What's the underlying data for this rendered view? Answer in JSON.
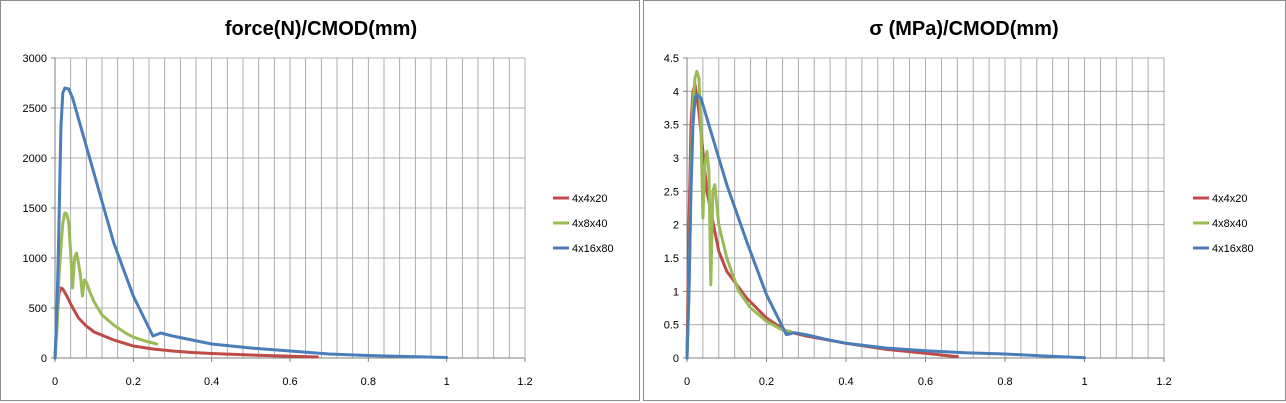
{
  "colors": {
    "grid": "#9a9a9a",
    "axis": "#7f7f7f"
  },
  "chart_data": [
    {
      "type": "line",
      "title": "force(N)/CMOD(mm)",
      "xlabel": "",
      "ylabel": "",
      "xlim": [
        0,
        1.2
      ],
      "ylim": [
        0,
        3000
      ],
      "x_ticks": [
        0,
        0.2,
        0.4,
        0.6,
        0.8,
        1,
        1.2
      ],
      "x_tick_labels": [
        "0",
        "0.2",
        "0.4",
        "0.6",
        "0.8",
        "1",
        "1.2"
      ],
      "y_ticks": [
        0,
        500,
        1000,
        1500,
        2000,
        2500,
        3000
      ],
      "y_tick_labels": [
        "0",
        "500",
        "1000",
        "1500",
        "2000",
        "2500",
        "3000"
      ],
      "grid": true,
      "legend_position": "right",
      "series": [
        {
          "name": "4x4x20",
          "color": "#be4b48",
          "points": [
            [
              0,
              0
            ],
            [
              0.005,
              400
            ],
            [
              0.01,
              640
            ],
            [
              0.015,
              700
            ],
            [
              0.02,
              690
            ],
            [
              0.03,
              620
            ],
            [
              0.04,
              540
            ],
            [
              0.05,
              470
            ],
            [
              0.06,
              400
            ],
            [
              0.08,
              320
            ],
            [
              0.1,
              260
            ],
            [
              0.15,
              180
            ],
            [
              0.2,
              120
            ],
            [
              0.25,
              90
            ],
            [
              0.3,
              70
            ],
            [
              0.35,
              55
            ],
            [
              0.4,
              45
            ],
            [
              0.5,
              30
            ],
            [
              0.6,
              18
            ],
            [
              0.67,
              10
            ]
          ]
        },
        {
          "name": "4x8x40",
          "color": "#9bbb59",
          "points": [
            [
              0,
              0
            ],
            [
              0.005,
              300
            ],
            [
              0.01,
              800
            ],
            [
              0.015,
              1100
            ],
            [
              0.02,
              1350
            ],
            [
              0.025,
              1450
            ],
            [
              0.03,
              1440
            ],
            [
              0.035,
              1350
            ],
            [
              0.04,
              1050
            ],
            [
              0.045,
              700
            ],
            [
              0.05,
              1000
            ],
            [
              0.055,
              1050
            ],
            [
              0.06,
              950
            ],
            [
              0.065,
              820
            ],
            [
              0.07,
              620
            ],
            [
              0.075,
              780
            ],
            [
              0.08,
              760
            ],
            [
              0.09,
              650
            ],
            [
              0.1,
              560
            ],
            [
              0.12,
              430
            ],
            [
              0.15,
              330
            ],
            [
              0.18,
              250
            ],
            [
              0.2,
              210
            ],
            [
              0.23,
              170
            ],
            [
              0.26,
              140
            ]
          ]
        },
        {
          "name": "4x16x80",
          "color": "#4a7ebb",
          "points": [
            [
              0,
              0
            ],
            [
              0.005,
              500
            ],
            [
              0.01,
              1300
            ],
            [
              0.015,
              2300
            ],
            [
              0.02,
              2650
            ],
            [
              0.025,
              2700
            ],
            [
              0.035,
              2690
            ],
            [
              0.045,
              2600
            ],
            [
              0.1,
              1840
            ],
            [
              0.15,
              1150
            ],
            [
              0.2,
              620
            ],
            [
              0.25,
              220
            ],
            [
              0.27,
              250
            ],
            [
              0.3,
              220
            ],
            [
              0.35,
              180
            ],
            [
              0.4,
              140
            ],
            [
              0.5,
              100
            ],
            [
              0.6,
              70
            ],
            [
              0.7,
              40
            ],
            [
              0.8,
              25
            ],
            [
              0.9,
              15
            ],
            [
              1.0,
              5
            ]
          ]
        }
      ]
    },
    {
      "type": "line",
      "title": "σ (MPa)/CMOD(mm)",
      "xlabel": "",
      "ylabel": "",
      "xlim": [
        0,
        1.2
      ],
      "ylim": [
        0,
        4.5
      ],
      "x_ticks": [
        0,
        0.2,
        0.4,
        0.6,
        0.8,
        1,
        1.2
      ],
      "x_tick_labels": [
        "0",
        "0.2",
        "0.4",
        "0.6",
        "0.8",
        "1",
        "1.2"
      ],
      "y_ticks": [
        0,
        0.5,
        1,
        1.5,
        2,
        2.5,
        3,
        3.5,
        4,
        4.5
      ],
      "y_tick_labels": [
        "0",
        "0.5",
        "1",
        "1.5",
        "2",
        "2.5",
        "3",
        "3.5",
        "4",
        "4.5"
      ],
      "grid": true,
      "legend_position": "right",
      "series": [
        {
          "name": "4x4x20",
          "color": "#be4b48",
          "points": [
            [
              0,
              0
            ],
            [
              0.005,
              2.0
            ],
            [
              0.01,
              3.5
            ],
            [
              0.015,
              4.0
            ],
            [
              0.02,
              4.1
            ],
            [
              0.03,
              3.7
            ],
            [
              0.04,
              3.1
            ],
            [
              0.05,
              2.5
            ],
            [
              0.06,
              2.2
            ],
            [
              0.08,
              1.6
            ],
            [
              0.1,
              1.3
            ],
            [
              0.15,
              0.9
            ],
            [
              0.2,
              0.6
            ],
            [
              0.25,
              0.4
            ],
            [
              0.3,
              0.33
            ],
            [
              0.4,
              0.22
            ],
            [
              0.5,
              0.13
            ],
            [
              0.6,
              0.07
            ],
            [
              0.68,
              0.02
            ]
          ]
        },
        {
          "name": "4x8x40",
          "color": "#9bbb59",
          "points": [
            [
              0,
              0
            ],
            [
              0.005,
              1.0
            ],
            [
              0.01,
              2.8
            ],
            [
              0.015,
              3.8
            ],
            [
              0.02,
              4.2
            ],
            [
              0.025,
              4.3
            ],
            [
              0.03,
              4.2
            ],
            [
              0.035,
              3.5
            ],
            [
              0.04,
              2.1
            ],
            [
              0.045,
              2.9
            ],
            [
              0.05,
              3.1
            ],
            [
              0.055,
              2.8
            ],
            [
              0.06,
              1.1
            ],
            [
              0.065,
              2.5
            ],
            [
              0.07,
              2.6
            ],
            [
              0.08,
              2.0
            ],
            [
              0.1,
              1.5
            ],
            [
              0.13,
              1.0
            ],
            [
              0.16,
              0.75
            ],
            [
              0.2,
              0.55
            ],
            [
              0.24,
              0.42
            ],
            [
              0.26,
              0.4
            ]
          ]
        },
        {
          "name": "4x16x80",
          "color": "#4a7ebb",
          "points": [
            [
              0,
              0
            ],
            [
              0.005,
              1.0
            ],
            [
              0.01,
              2.5
            ],
            [
              0.015,
              3.5
            ],
            [
              0.02,
              3.9
            ],
            [
              0.025,
              3.95
            ],
            [
              0.035,
              3.9
            ],
            [
              0.06,
              3.4
            ],
            [
              0.1,
              2.6
            ],
            [
              0.15,
              1.75
            ],
            [
              0.2,
              0.95
            ],
            [
              0.25,
              0.35
            ],
            [
              0.27,
              0.38
            ],
            [
              0.3,
              0.35
            ],
            [
              0.35,
              0.28
            ],
            [
              0.4,
              0.22
            ],
            [
              0.5,
              0.15
            ],
            [
              0.6,
              0.11
            ],
            [
              0.7,
              0.08
            ],
            [
              0.8,
              0.06
            ],
            [
              0.9,
              0.03
            ],
            [
              1.0,
              0.005
            ]
          ]
        }
      ]
    }
  ]
}
